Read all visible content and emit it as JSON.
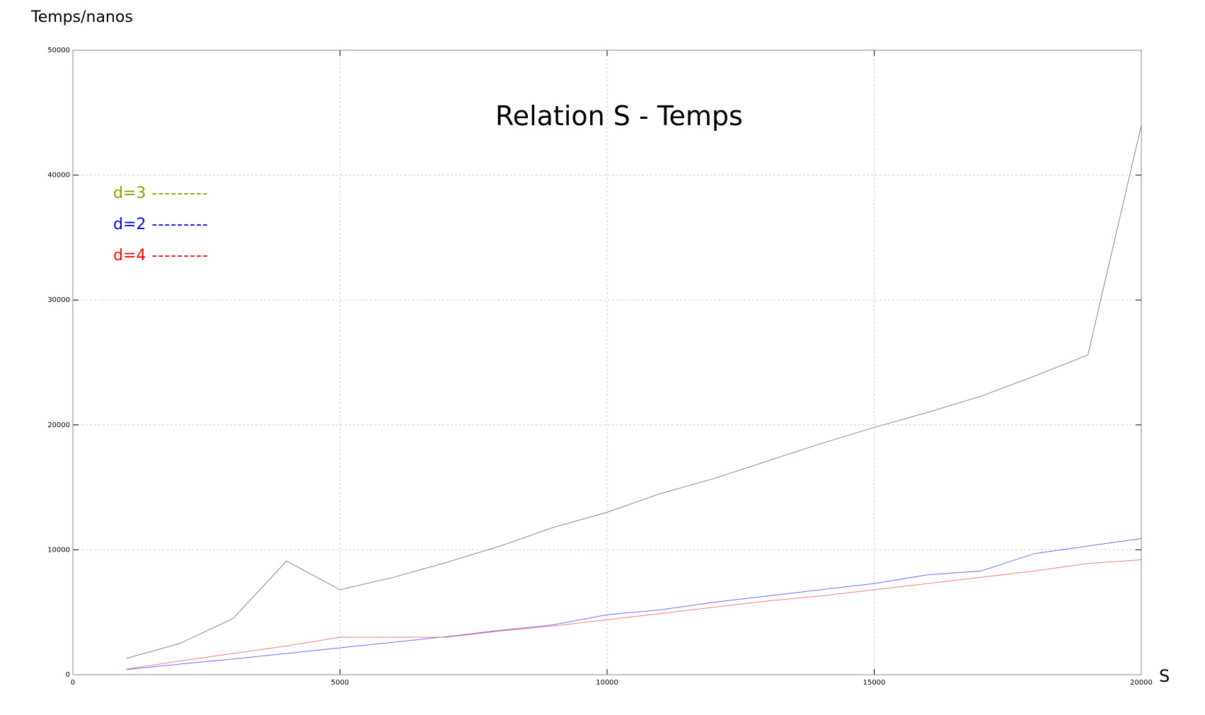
{
  "chart_data": {
    "type": "line",
    "title": "Relation S - Temps",
    "xlabel": "S",
    "ylabel": "Temps/nanos",
    "xlim": [
      0,
      20000
    ],
    "ylim": [
      0,
      50000
    ],
    "x_ticks": [
      "0",
      "5000",
      "10000",
      "15000",
      "20000"
    ],
    "y_ticks": [
      "0",
      "10000",
      "20000",
      "30000",
      "40000",
      "50000"
    ],
    "grid": true,
    "legend": [
      {
        "label": "d=3",
        "dash": "---------",
        "color": "#999900"
      },
      {
        "label": "d=2",
        "dash": "---------",
        "color": "#0000ff"
      },
      {
        "label": "d=4",
        "dash": "---------",
        "color": "#ff0000"
      }
    ],
    "x": [
      1000,
      2000,
      3000,
      4000,
      5000,
      6000,
      7000,
      8000,
      9000,
      10000,
      11000,
      12000,
      13000,
      14000,
      15000,
      16000,
      17000,
      18000,
      19000,
      20000
    ],
    "series": [
      {
        "color": "#888888",
        "values": [
          1300,
          2500,
          4500,
          9100,
          6800,
          7800,
          9000,
          10300,
          11800,
          13000,
          14500,
          15700,
          17100,
          18500,
          19800,
          21000,
          22300,
          23900,
          25600,
          44000
        ]
      },
      {
        "color": "#6b6bff",
        "values": [
          400,
          850,
          1250,
          1700,
          2150,
          2600,
          3050,
          3550,
          4000,
          4800,
          5200,
          5800,
          6300,
          6800,
          7300,
          8000,
          8300,
          9700,
          10300,
          10900
        ]
      },
      {
        "color": "#ff7a7a",
        "values": [
          450,
          1100,
          1700,
          2300,
          3000,
          3000,
          3000,
          3500,
          3900,
          4400,
          4900,
          5400,
          5900,
          6300,
          6800,
          7300,
          7800,
          8300,
          8900,
          9200
        ]
      }
    ]
  }
}
